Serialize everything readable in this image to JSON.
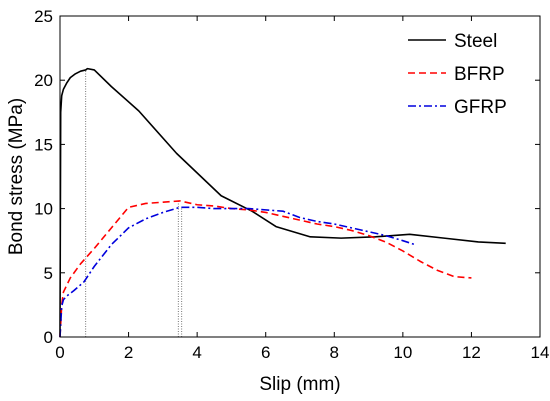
{
  "chart_data": {
    "type": "line",
    "xlabel": "Slip (mm)",
    "ylabel": "Bond stress (MPa)",
    "xlim": [
      0,
      14
    ],
    "ylim": [
      0,
      25
    ],
    "xticks": [
      0,
      2,
      4,
      6,
      8,
      10,
      12,
      14
    ],
    "yticks": [
      0,
      5,
      10,
      15,
      20,
      25
    ],
    "legend_position": "top-right",
    "grid": false,
    "series": [
      {
        "name": "Steel",
        "color": "#000000",
        "dash": "solid",
        "x": [
          0,
          0.02,
          0.05,
          0.1,
          0.2,
          0.3,
          0.45,
          0.6,
          0.75,
          0.8,
          1.0,
          1.5,
          2.3,
          3.4,
          4.7,
          5.6,
          6.3,
          7.3,
          8.2,
          9.2,
          10.2,
          11.2,
          12.2,
          13.0
        ],
        "y": [
          0,
          17.5,
          18.8,
          19.3,
          19.8,
          20.2,
          20.5,
          20.7,
          20.8,
          20.9,
          20.8,
          19.5,
          17.6,
          14.3,
          11.0,
          9.8,
          8.6,
          7.8,
          7.7,
          7.8,
          8.0,
          7.7,
          7.4,
          7.3
        ]
      },
      {
        "name": "BFRP",
        "color": "#ff0000",
        "dash": "dashed",
        "x": [
          0,
          0.05,
          0.1,
          0.3,
          0.6,
          1.0,
          1.5,
          2.0,
          2.5,
          3.0,
          3.5,
          4.0,
          4.5,
          5.0,
          5.5,
          6.0,
          6.5,
          7.0,
          7.5,
          8.0,
          8.5,
          9.0,
          9.5,
          10.0,
          10.5,
          11.0,
          11.5,
          12.0
        ],
        "y": [
          0,
          2.5,
          3.5,
          4.6,
          5.7,
          6.9,
          8.5,
          10.1,
          10.4,
          10.5,
          10.6,
          10.3,
          10.2,
          10.0,
          9.9,
          9.7,
          9.4,
          9.1,
          8.8,
          8.6,
          8.3,
          7.9,
          7.4,
          6.7,
          5.9,
          5.2,
          4.7,
          4.6
        ]
      },
      {
        "name": "GFRP",
        "color": "#0000dd",
        "dash": "dashdot",
        "x": [
          0,
          0.05,
          0.1,
          0.2,
          0.4,
          0.7,
          1.0,
          1.5,
          2.0,
          2.5,
          3.0,
          3.5,
          4.0,
          4.5,
          5.0,
          5.5,
          6.0,
          6.5,
          7.0,
          7.5,
          8.0,
          8.5,
          9.0,
          9.5,
          10.0,
          10.35
        ],
        "y": [
          0,
          2.4,
          2.9,
          3.2,
          3.6,
          4.3,
          5.5,
          7.2,
          8.5,
          9.2,
          9.7,
          10.1,
          10.1,
          10.0,
          10.0,
          10.0,
          9.9,
          9.8,
          9.3,
          9.0,
          8.8,
          8.5,
          8.2,
          7.9,
          7.5,
          7.2
        ]
      }
    ],
    "reference_lines": [
      {
        "x": 0.75,
        "y": 20.8
      },
      {
        "x": 3.45,
        "y": 10.6
      },
      {
        "x": 3.55,
        "y": 10.1
      }
    ]
  }
}
